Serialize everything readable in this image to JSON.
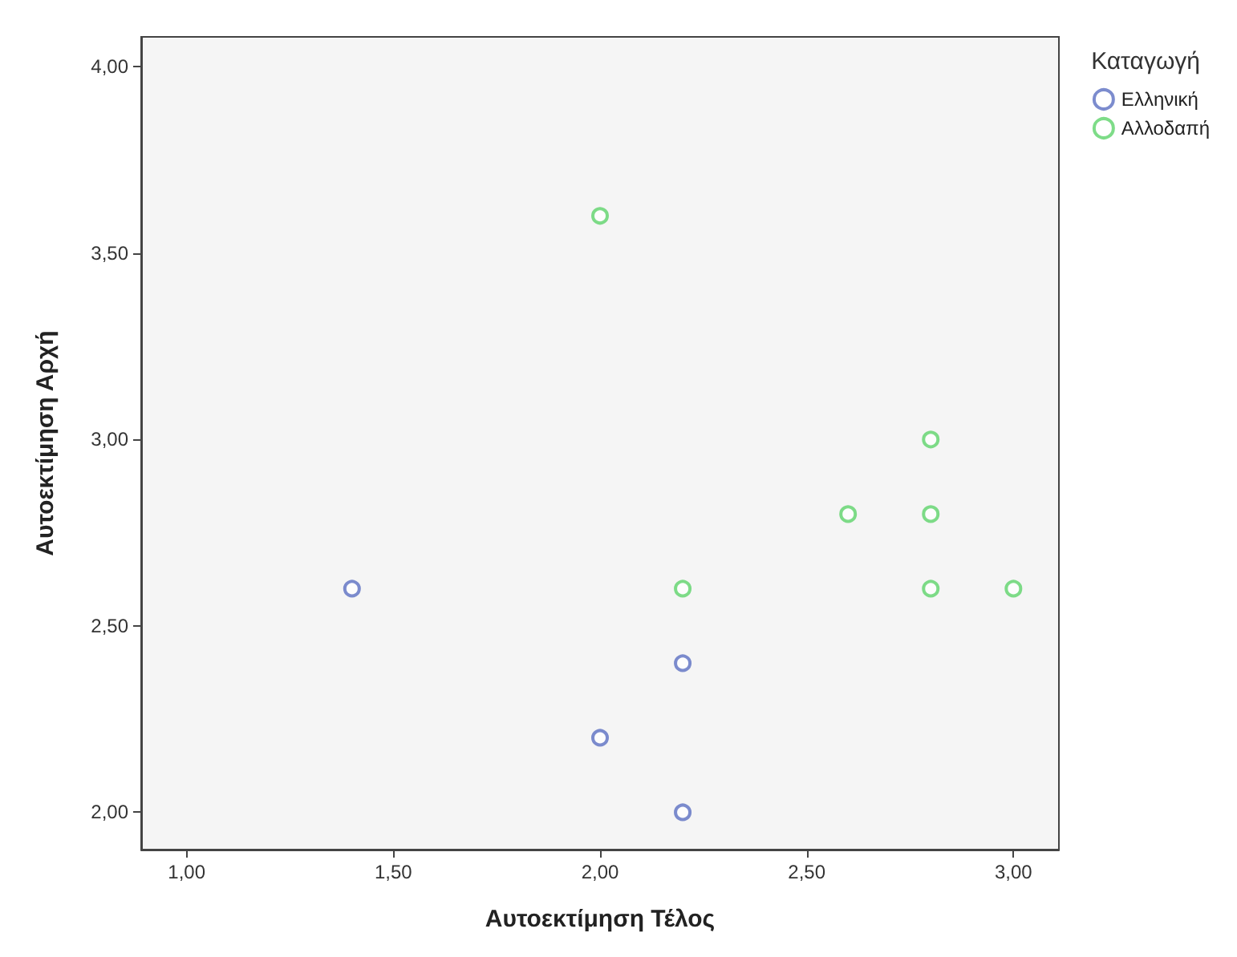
{
  "chart_data": {
    "type": "scatter",
    "xlabel": "Αυτοεκτίμηση Τέλος",
    "ylabel": "Αυτοεκτίμηση Αρχή",
    "legend_title": "Καταγωγή",
    "legend": "top right",
    "marker": "circle",
    "grid": false,
    "xlim": [
      0.89,
      3.11
    ],
    "ylim": [
      1.9,
      4.08
    ],
    "xticks": [
      {
        "value": 1,
        "label": "1,00"
      },
      {
        "value": 1.5,
        "label": "1,50"
      },
      {
        "value": 2,
        "label": "2,00"
      },
      {
        "value": 2.5,
        "label": "2,50"
      },
      {
        "value": 3,
        "label": "3,00"
      }
    ],
    "yticks": [
      {
        "value": 2,
        "label": "2,00"
      },
      {
        "value": 2.5,
        "label": "2,50"
      },
      {
        "value": 3,
        "label": "3,00"
      },
      {
        "value": 3.5,
        "label": "3,50"
      },
      {
        "value": 4,
        "label": "4,00"
      }
    ],
    "series": [
      {
        "name": "Ελληνική",
        "color": "#5b6fc2",
        "x": [
          1.4,
          2.2,
          2.0,
          2.2
        ],
        "values": [
          2.6,
          2.4,
          2.2,
          2.0
        ]
      },
      {
        "name": "Αλλοδαπή",
        "color": "#5ed36a",
        "x": [
          2.0,
          2.2,
          2.6,
          2.8,
          2.8,
          2.8,
          3.0
        ],
        "values": [
          3.6,
          2.6,
          2.8,
          3.0,
          2.8,
          2.6,
          2.6
        ]
      }
    ]
  }
}
